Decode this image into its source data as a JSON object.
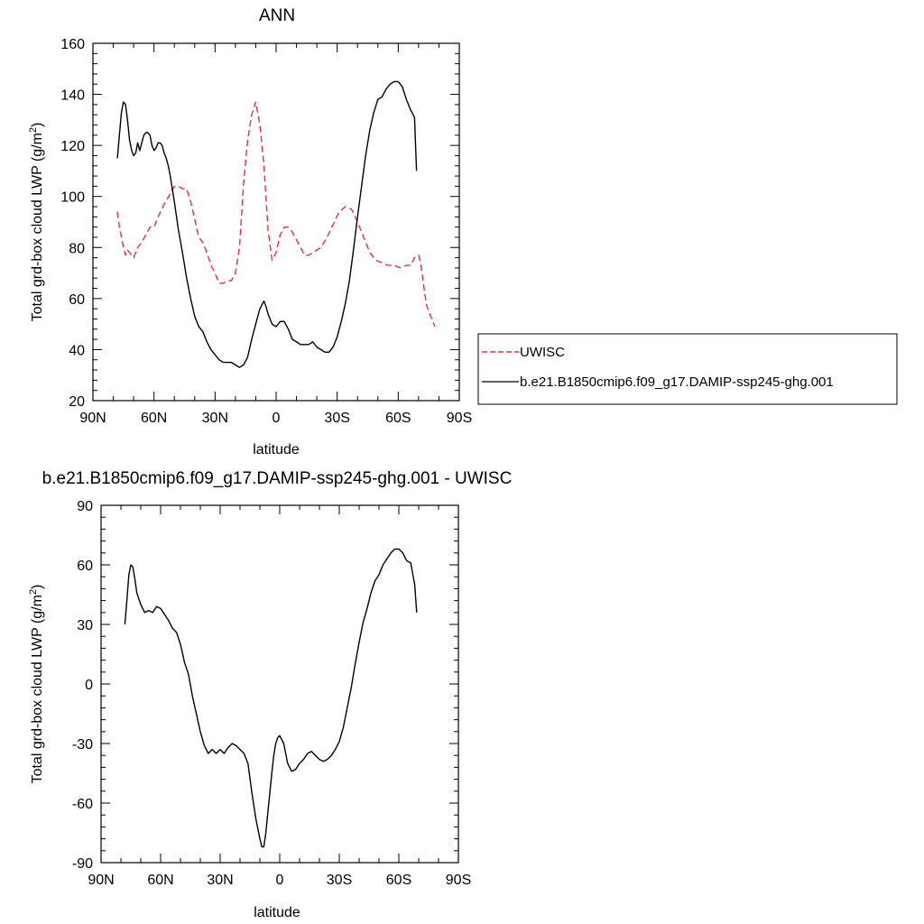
{
  "chart_data": [
    {
      "type": "line",
      "title": "ANN",
      "xlabel": "latitude",
      "ylabel_main": "Total grd-box cloud LWP (g/m",
      "ylabel_sup": "2",
      "ylabel_close": ")",
      "xlim": [
        90,
        -90
      ],
      "ylim": [
        20,
        160
      ],
      "x_ticks": [
        90,
        60,
        30,
        0,
        -30,
        -60,
        -90
      ],
      "x_tick_labels": [
        "90N",
        "60N",
        "30N",
        "0",
        "30S",
        "60S",
        "90S"
      ],
      "y_ticks": [
        20,
        40,
        60,
        80,
        100,
        120,
        140,
        160
      ],
      "y_tick_labels": [
        "20",
        "40",
        "60",
        "80",
        "100",
        "120",
        "140",
        "160"
      ],
      "legend_position": "right",
      "series": [
        {
          "name": "UWISC",
          "color": "#e8313b",
          "dash": "dashed",
          "x": [
            78,
            77,
            76,
            75,
            74,
            73,
            72,
            70,
            68,
            66,
            64,
            62,
            60,
            58,
            55,
            52,
            50,
            48,
            46,
            44,
            42,
            40,
            38,
            36,
            34,
            32,
            30,
            28,
            26,
            24,
            22,
            20,
            18,
            16,
            14,
            12,
            10,
            8,
            6,
            5,
            4,
            2,
            0,
            -2,
            -4,
            -6,
            -8,
            -10,
            -12,
            -14,
            -16,
            -18,
            -20,
            -22,
            -25,
            -28,
            -31,
            -34,
            -37,
            -40,
            -43,
            -46,
            -49,
            -52,
            -55,
            -58,
            -61,
            -64,
            -66,
            -68,
            -70,
            -71,
            -72,
            -73,
            -74,
            -75,
            -76,
            -77,
            -78
          ],
          "y": [
            94,
            88,
            84,
            80,
            77,
            79,
            78,
            76,
            80,
            82,
            85,
            88,
            88,
            92,
            97,
            101,
            104,
            104,
            103,
            103,
            98,
            91,
            84,
            82,
            78,
            73,
            70,
            66,
            66,
            67,
            67,
            70,
            80,
            105,
            122,
            132,
            137,
            128,
            112,
            100,
            87,
            75,
            78,
            85,
            88,
            88,
            86,
            83,
            80,
            77,
            77,
            78,
            79,
            80,
            84,
            89,
            94,
            96,
            95,
            90,
            84,
            78,
            75,
            74,
            73,
            73,
            72,
            73,
            73,
            76,
            77,
            74,
            68,
            62,
            57,
            55,
            53,
            51,
            49
          ]
        },
        {
          "name": "b.e21.B1850cmip6.f09_g17.DAMIP-ssp245-ghg.001",
          "color": "#000000",
          "dash": "solid",
          "x": [
            78,
            77,
            76,
            75,
            74,
            73,
            72,
            71,
            70,
            69,
            68,
            67,
            66,
            65,
            64,
            63,
            62,
            61,
            60,
            59,
            58,
            57,
            56,
            55,
            54,
            53,
            52,
            50,
            48,
            46,
            44,
            42,
            40,
            38,
            36,
            34,
            32,
            30,
            28,
            26,
            24,
            22,
            20,
            18,
            16,
            14,
            12,
            10,
            8,
            6,
            5,
            4,
            2,
            0,
            -2,
            -4,
            -6,
            -8,
            -10,
            -12,
            -14,
            -16,
            -18,
            -20,
            -22,
            -24,
            -26,
            -28,
            -30,
            -32,
            -34,
            -36,
            -38,
            -40,
            -42,
            -44,
            -46,
            -48,
            -50,
            -52,
            -54,
            -56,
            -58,
            -60,
            -62,
            -64,
            -66,
            -68,
            -69
          ],
          "y": [
            115,
            124,
            133,
            137,
            136,
            130,
            122,
            118,
            116,
            117,
            121,
            118,
            121,
            124,
            125,
            125,
            124,
            120,
            118,
            119,
            121,
            121,
            120,
            117,
            115,
            112,
            108,
            98,
            87,
            78,
            68,
            60,
            53,
            49,
            47,
            43,
            40,
            38,
            36,
            35,
            35,
            35,
            34,
            33,
            34,
            37,
            44,
            50,
            56,
            59,
            57,
            54,
            50,
            49,
            51,
            51,
            48,
            44,
            43,
            42,
            42,
            42,
            43,
            41,
            40,
            39,
            39,
            41,
            45,
            51,
            58,
            67,
            79,
            92,
            104,
            116,
            126,
            133,
            138,
            139,
            142,
            144,
            145,
            145,
            143,
            138,
            134,
            131,
            110
          ]
        }
      ]
    },
    {
      "type": "line",
      "title": "b.e21.B1850cmip6.f09_g17.DAMIP-ssp245-ghg.001 - UWISC",
      "xlabel": "latitude",
      "ylabel_main": "Total grd-box cloud LWP (g/m",
      "ylabel_sup": "2",
      "ylabel_close": ")",
      "xlim": [
        90,
        -90
      ],
      "ylim": [
        -90,
        90
      ],
      "x_ticks": [
        90,
        60,
        30,
        0,
        -30,
        -60,
        -90
      ],
      "x_tick_labels": [
        "90N",
        "60N",
        "30N",
        "0",
        "30S",
        "60S",
        "90S"
      ],
      "y_ticks": [
        -90,
        -60,
        -30,
        0,
        30,
        60,
        90
      ],
      "y_tick_labels": [
        "-90",
        "-60",
        "-30",
        "0",
        "30",
        "60",
        "90"
      ],
      "series": [
        {
          "color": "#000000",
          "dash": "solid",
          "x": [
            78,
            77,
            76,
            75,
            74,
            73,
            72,
            70,
            68,
            66,
            64,
            62,
            60,
            58,
            56,
            54,
            52,
            50,
            48,
            46,
            44,
            42,
            40,
            38,
            36,
            34,
            32,
            30,
            28,
            26,
            24,
            22,
            20,
            18,
            16,
            14,
            12,
            10,
            9,
            8,
            7,
            6,
            5,
            4,
            3,
            2,
            1,
            0,
            -2,
            -4,
            -6,
            -8,
            -10,
            -12,
            -14,
            -16,
            -18,
            -20,
            -22,
            -24,
            -26,
            -28,
            -30,
            -32,
            -34,
            -36,
            -38,
            -40,
            -42,
            -44,
            -46,
            -48,
            -50,
            -52,
            -54,
            -56,
            -58,
            -60,
            -62,
            -64,
            -66,
            -68,
            -69
          ],
          "y": [
            30,
            42,
            55,
            60,
            59,
            53,
            46,
            40,
            36,
            37,
            36,
            39,
            38,
            35,
            32,
            28,
            26,
            20,
            11,
            5,
            -6,
            -15,
            -24,
            -31,
            -35,
            -33,
            -35,
            -33,
            -35,
            -32,
            -30,
            -31,
            -33,
            -35,
            -40,
            -55,
            -68,
            -78,
            -82,
            -82,
            -75,
            -65,
            -55,
            -45,
            -36,
            -30,
            -27,
            -26,
            -30,
            -40,
            -44,
            -43,
            -40,
            -38,
            -35,
            -34,
            -36,
            -38,
            -39,
            -38,
            -36,
            -33,
            -29,
            -22,
            -12,
            -2,
            10,
            21,
            31,
            38,
            46,
            52,
            55,
            60,
            63,
            66,
            68,
            68,
            66,
            62,
            61,
            50,
            36
          ]
        }
      ]
    }
  ]
}
